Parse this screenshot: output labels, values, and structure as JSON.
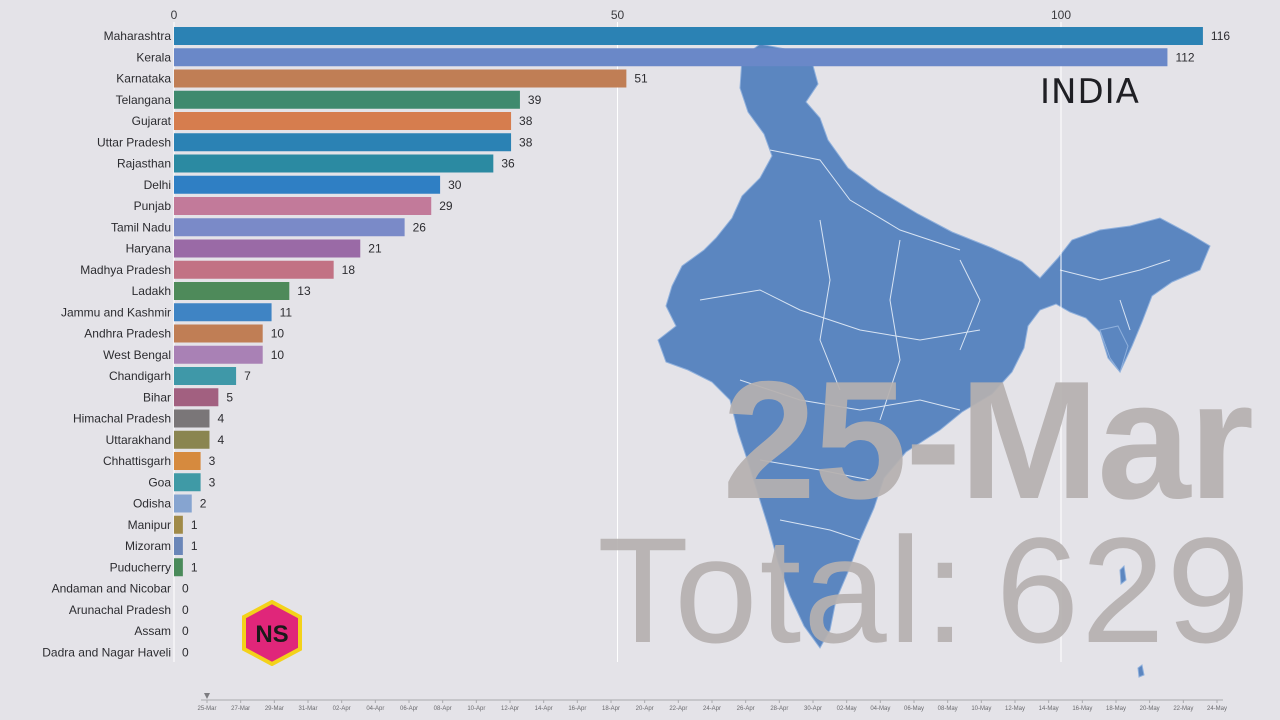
{
  "country": "INDIA",
  "date_label": "25-Mar",
  "total_prefix": "Total:",
  "total_value": "629",
  "logo_text": "NS",
  "colors": {
    "background": "#e4e3e8",
    "map": "#5b86c0",
    "watermark_text": "#b6b1b0",
    "logo_fill": "#e0267a",
    "logo_border": "#f3d21a"
  },
  "chart_data": {
    "type": "bar",
    "orientation": "horizontal",
    "xlim": [
      0,
      116
    ],
    "x_ticks": [
      0,
      50,
      100
    ],
    "grid": true,
    "categories": [
      "Maharashtra",
      "Kerala",
      "Karnataka",
      "Telangana",
      "Gujarat",
      "Uttar Pradesh",
      "Rajasthan",
      "Delhi",
      "Punjab",
      "Tamil Nadu",
      "Haryana",
      "Madhya Pradesh",
      "Ladakh",
      "Jammu and Kashmir",
      "Andhra Pradesh",
      "West Bengal",
      "Chandigarh",
      "Bihar",
      "Himachal Pradesh",
      "Uttarakhand",
      "Chhattisgarh",
      "Goa",
      "Odisha",
      "Manipur",
      "Mizoram",
      "Puducherry",
      "Andaman and Nicobar",
      "Arunachal Pradesh",
      "Assam",
      "Dadra and Nagar Haveli"
    ],
    "values": [
      116,
      112,
      51,
      39,
      38,
      38,
      36,
      30,
      29,
      26,
      21,
      18,
      13,
      11,
      10,
      10,
      7,
      5,
      4,
      4,
      3,
      3,
      2,
      1,
      1,
      1,
      0,
      0,
      0,
      0
    ],
    "bar_colors": [
      "#2b82b4",
      "#6a88c8",
      "#c07e55",
      "#3f8a6e",
      "#d67d4e",
      "#2b82b4",
      "#2b8aa2",
      "#2f7fc4",
      "#c27a9a",
      "#7a8ac8",
      "#9a6aa6",
      "#c27284",
      "#4e8a5a",
      "#3f84c4",
      "#c07e55",
      "#a981b5",
      "#3f98a8",
      "#a26080",
      "#7a7678",
      "#8a8550",
      "#d68a3e",
      "#3f9aa6",
      "#86a4d0",
      "#a08a48",
      "#6a86b8",
      "#4a8a5a",
      "#888888",
      "#888888",
      "#888888",
      "#888888"
    ],
    "timeline": {
      "dates": [
        "25-Mar",
        "27-Mar",
        "29-Mar",
        "31-Mar",
        "02-Apr",
        "04-Apr",
        "06-Apr",
        "08-Apr",
        "10-Apr",
        "12-Apr",
        "14-Apr",
        "16-Apr",
        "18-Apr",
        "20-Apr",
        "22-Apr",
        "24-Apr",
        "26-Apr",
        "28-Apr",
        "30-Apr",
        "02-May",
        "04-May",
        "06-May",
        "08-May",
        "10-May",
        "12-May",
        "14-May",
        "16-May",
        "18-May",
        "20-May",
        "22-May",
        "24-May"
      ],
      "current": "25-Mar"
    }
  }
}
